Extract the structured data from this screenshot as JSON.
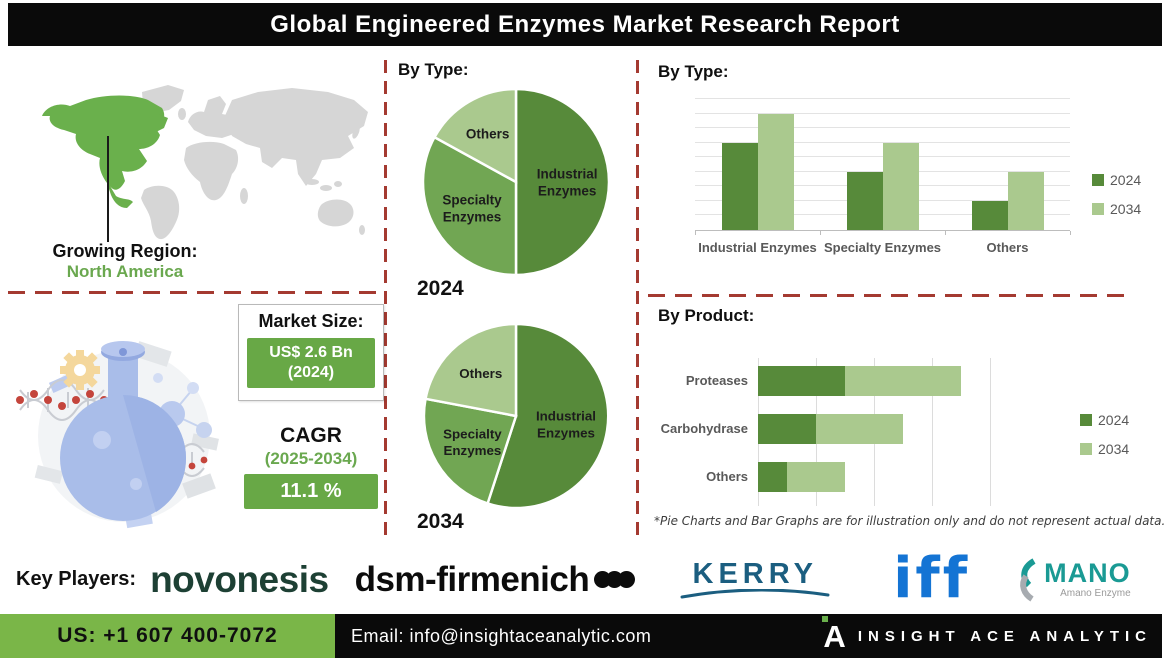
{
  "title": "Global Engineered Enzymes Market Research Report",
  "colors": {
    "dark_green": "#578a3a",
    "mid_green": "#71a653",
    "light_green": "#aac98e",
    "box_green": "#68a846",
    "footer_green": "#7ab648",
    "accent_green": "#6aa84f",
    "na_green": "#6ab04c",
    "dashed_red": "#a43a31",
    "label_gray": "#595959",
    "map_gray": "#d6d6d6",
    "kerry_blue": "#1b5e80",
    "iff_blue": "#1474d4",
    "amano_teal": "#1a9a94",
    "novonesis_green": "#1d4034"
  },
  "region": {
    "heading": "Growing Region:",
    "value": "North America"
  },
  "market_size": {
    "heading": "Market Size:",
    "value_line1": "US$ 2.6 Bn",
    "value_line2": "(2024)"
  },
  "cagr": {
    "heading": "CAGR",
    "period": "(2025-2034)",
    "value": "11.1 %"
  },
  "chart_data": [
    {
      "type": "pie",
      "title": "By Type:",
      "year_label": "2024",
      "slices": [
        {
          "label": "Industrial Enzymes",
          "value": 50
        },
        {
          "label": "Specialty Enzymes",
          "value": 33
        },
        {
          "label": "Others",
          "value": 17
        }
      ]
    },
    {
      "type": "pie",
      "year_label": "2034",
      "slices": [
        {
          "label": "Industrial Enzymes",
          "value": 55
        },
        {
          "label": "Specialty Enzymes",
          "value": 23
        },
        {
          "label": "Others",
          "value": 22
        }
      ]
    },
    {
      "type": "bar",
      "title": "By Type:",
      "categories": [
        "Industrial Enzymes",
        "Specialty Enzymes",
        "Others"
      ],
      "series": [
        {
          "name": "2024",
          "values": [
            6,
            4,
            2
          ]
        },
        {
          "name": "2034",
          "values": [
            8,
            6,
            4
          ]
        }
      ],
      "ylim": [
        0,
        9
      ],
      "grid": true,
      "legend_position": "right"
    },
    {
      "type": "bar-horizontal-stacked",
      "title": "By Product:",
      "categories": [
        "Proteases",
        "Carbohydrase",
        "Others"
      ],
      "series": [
        {
          "name": "2024",
          "values": [
            1.5,
            1.0,
            0.5
          ]
        },
        {
          "name": "2034",
          "values": [
            2.0,
            1.5,
            1.0
          ]
        }
      ],
      "xlim": [
        0,
        4
      ],
      "grid": true,
      "legend_position": "right"
    }
  ],
  "footnote": "*Pie Charts and Bar Graphs are for illustration only and do not represent actual data.",
  "key_players": {
    "label": "Key Players:",
    "novonesis": "novonesis",
    "dsm": "dsm-firmenich",
    "kerry": "KERRY",
    "iff": "iff",
    "amano": "MANO",
    "amano_sub": "Amano Enzyme"
  },
  "footer": {
    "phone": "US: +1 607 400-7072",
    "email": "Email: info@insightaceanalytic.com",
    "brand_letter": "A",
    "brand": "INSIGHT ACE ANALYTIC"
  }
}
